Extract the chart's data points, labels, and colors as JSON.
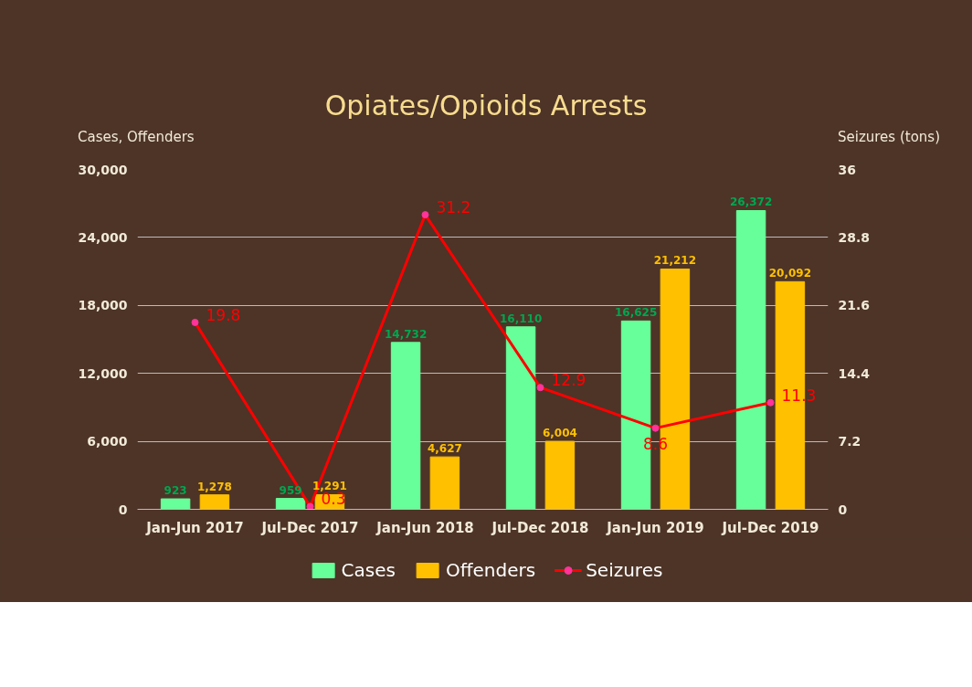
{
  "chart_data": {
    "type": "bar",
    "title": "Opiates/Opioids Arrests",
    "ylabel": "Cases, Offenders",
    "y2label": "Seizures (tons)",
    "categories": [
      "Jan-Jun 2017",
      "Jul-Dec 2017",
      "Jan-Jun 2018",
      "Jul-Dec 2018",
      "Jan-Jun 2019",
      "Jul-Dec 2019"
    ],
    "series": [
      {
        "name": "Cases",
        "color": "#66ff99",
        "values": [
          923,
          959,
          14732,
          16110,
          16625,
          26372
        ],
        "value_labels": [
          "923",
          "959",
          "14,732",
          "16,110",
          "16,625",
          "26,372"
        ]
      },
      {
        "name": "Offenders",
        "color": "#ffc000",
        "values": [
          1278,
          1291,
          4627,
          6004,
          21212,
          20092
        ],
        "value_labels": [
          "1,278",
          "1,291",
          "4,627",
          "6,004",
          "21,212",
          "20,092"
        ]
      },
      {
        "name": "Seizures",
        "type": "line",
        "axis": "y2",
        "color": "#ff0000",
        "marker": "circle",
        "values": [
          19.8,
          0.3,
          31.2,
          12.9,
          8.6,
          11.3
        ],
        "value_labels": [
          "19.8",
          "0.3",
          "31.2",
          "12.9",
          "8.6",
          "11.3"
        ]
      }
    ],
    "ylim": [
      0,
      30000
    ],
    "yticks": [
      {
        "value": 0,
        "label": "0"
      },
      {
        "value": 6000,
        "label": "6,000"
      },
      {
        "value": 12000,
        "label": "12,000"
      },
      {
        "value": 18000,
        "label": "18,000"
      },
      {
        "value": 24000,
        "label": "24,000"
      },
      {
        "value": 30000,
        "label": "30,000"
      }
    ],
    "y2lim": [
      0,
      36
    ],
    "y2ticks": [
      0,
      7.2,
      14.4,
      21.6,
      28.8,
      36
    ],
    "grid": "y",
    "legend": "bottom"
  }
}
